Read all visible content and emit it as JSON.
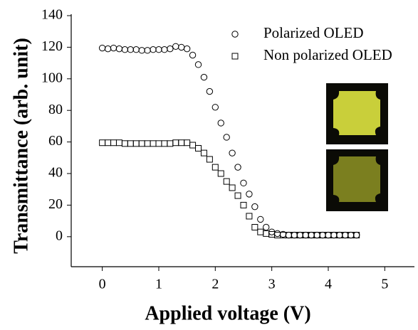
{
  "chart_data": {
    "type": "scatter",
    "x_label": "Applied voltage (V)",
    "y_label": "Transmittance (arb. unit)",
    "xlim": [
      -0.55,
      5.5
    ],
    "xticks": [
      0,
      1,
      2,
      3,
      4,
      5
    ],
    "ylim": [
      -19,
      140
    ],
    "yticks": [
      0,
      20,
      40,
      60,
      80,
      100,
      120,
      140
    ],
    "x": [
      0,
      0.1,
      0.2,
      0.3,
      0.4,
      0.5,
      0.6,
      0.7,
      0.8,
      0.9,
      1,
      1.1,
      1.2,
      1.3,
      1.4,
      1.5,
      1.6,
      1.7,
      1.8,
      1.9,
      2,
      2.1,
      2.2,
      2.3,
      2.4,
      2.5,
      2.6,
      2.7,
      2.8,
      2.9,
      3,
      3.1,
      3.2,
      3.3,
      3.4,
      3.5,
      3.6,
      3.7,
      3.8,
      3.9,
      4,
      4.1,
      4.2,
      4.3,
      4.4,
      4.5
    ],
    "series": [
      {
        "name": "Polarized OLED",
        "color": "#000000",
        "marker": "circle",
        "values": [
          119.5,
          119,
          119.5,
          119,
          118.5,
          118.5,
          118.5,
          118,
          118,
          118.5,
          118.5,
          118.5,
          119,
          120.5,
          120,
          119,
          115,
          109,
          101,
          92,
          82,
          72,
          63,
          53,
          44,
          34,
          27,
          19,
          11,
          6,
          3,
          2,
          1.5,
          1,
          1,
          1,
          1,
          1,
          1,
          1,
          1,
          1,
          1,
          1,
          1,
          1
        ]
      },
      {
        "name": "Non polarized OLED",
        "color": "#000000",
        "marker": "square",
        "values": [
          59.5,
          59.5,
          59.5,
          59.5,
          59,
          59,
          59,
          59,
          59,
          59,
          59,
          59,
          59,
          59.5,
          59.5,
          59.5,
          58,
          56,
          53,
          49,
          44,
          40,
          35,
          31,
          26,
          20,
          13,
          6,
          3,
          2,
          1.5,
          1,
          1,
          1,
          1,
          1,
          1,
          1,
          1,
          1,
          1,
          1,
          1,
          1,
          1,
          1
        ]
      }
    ]
  }
}
